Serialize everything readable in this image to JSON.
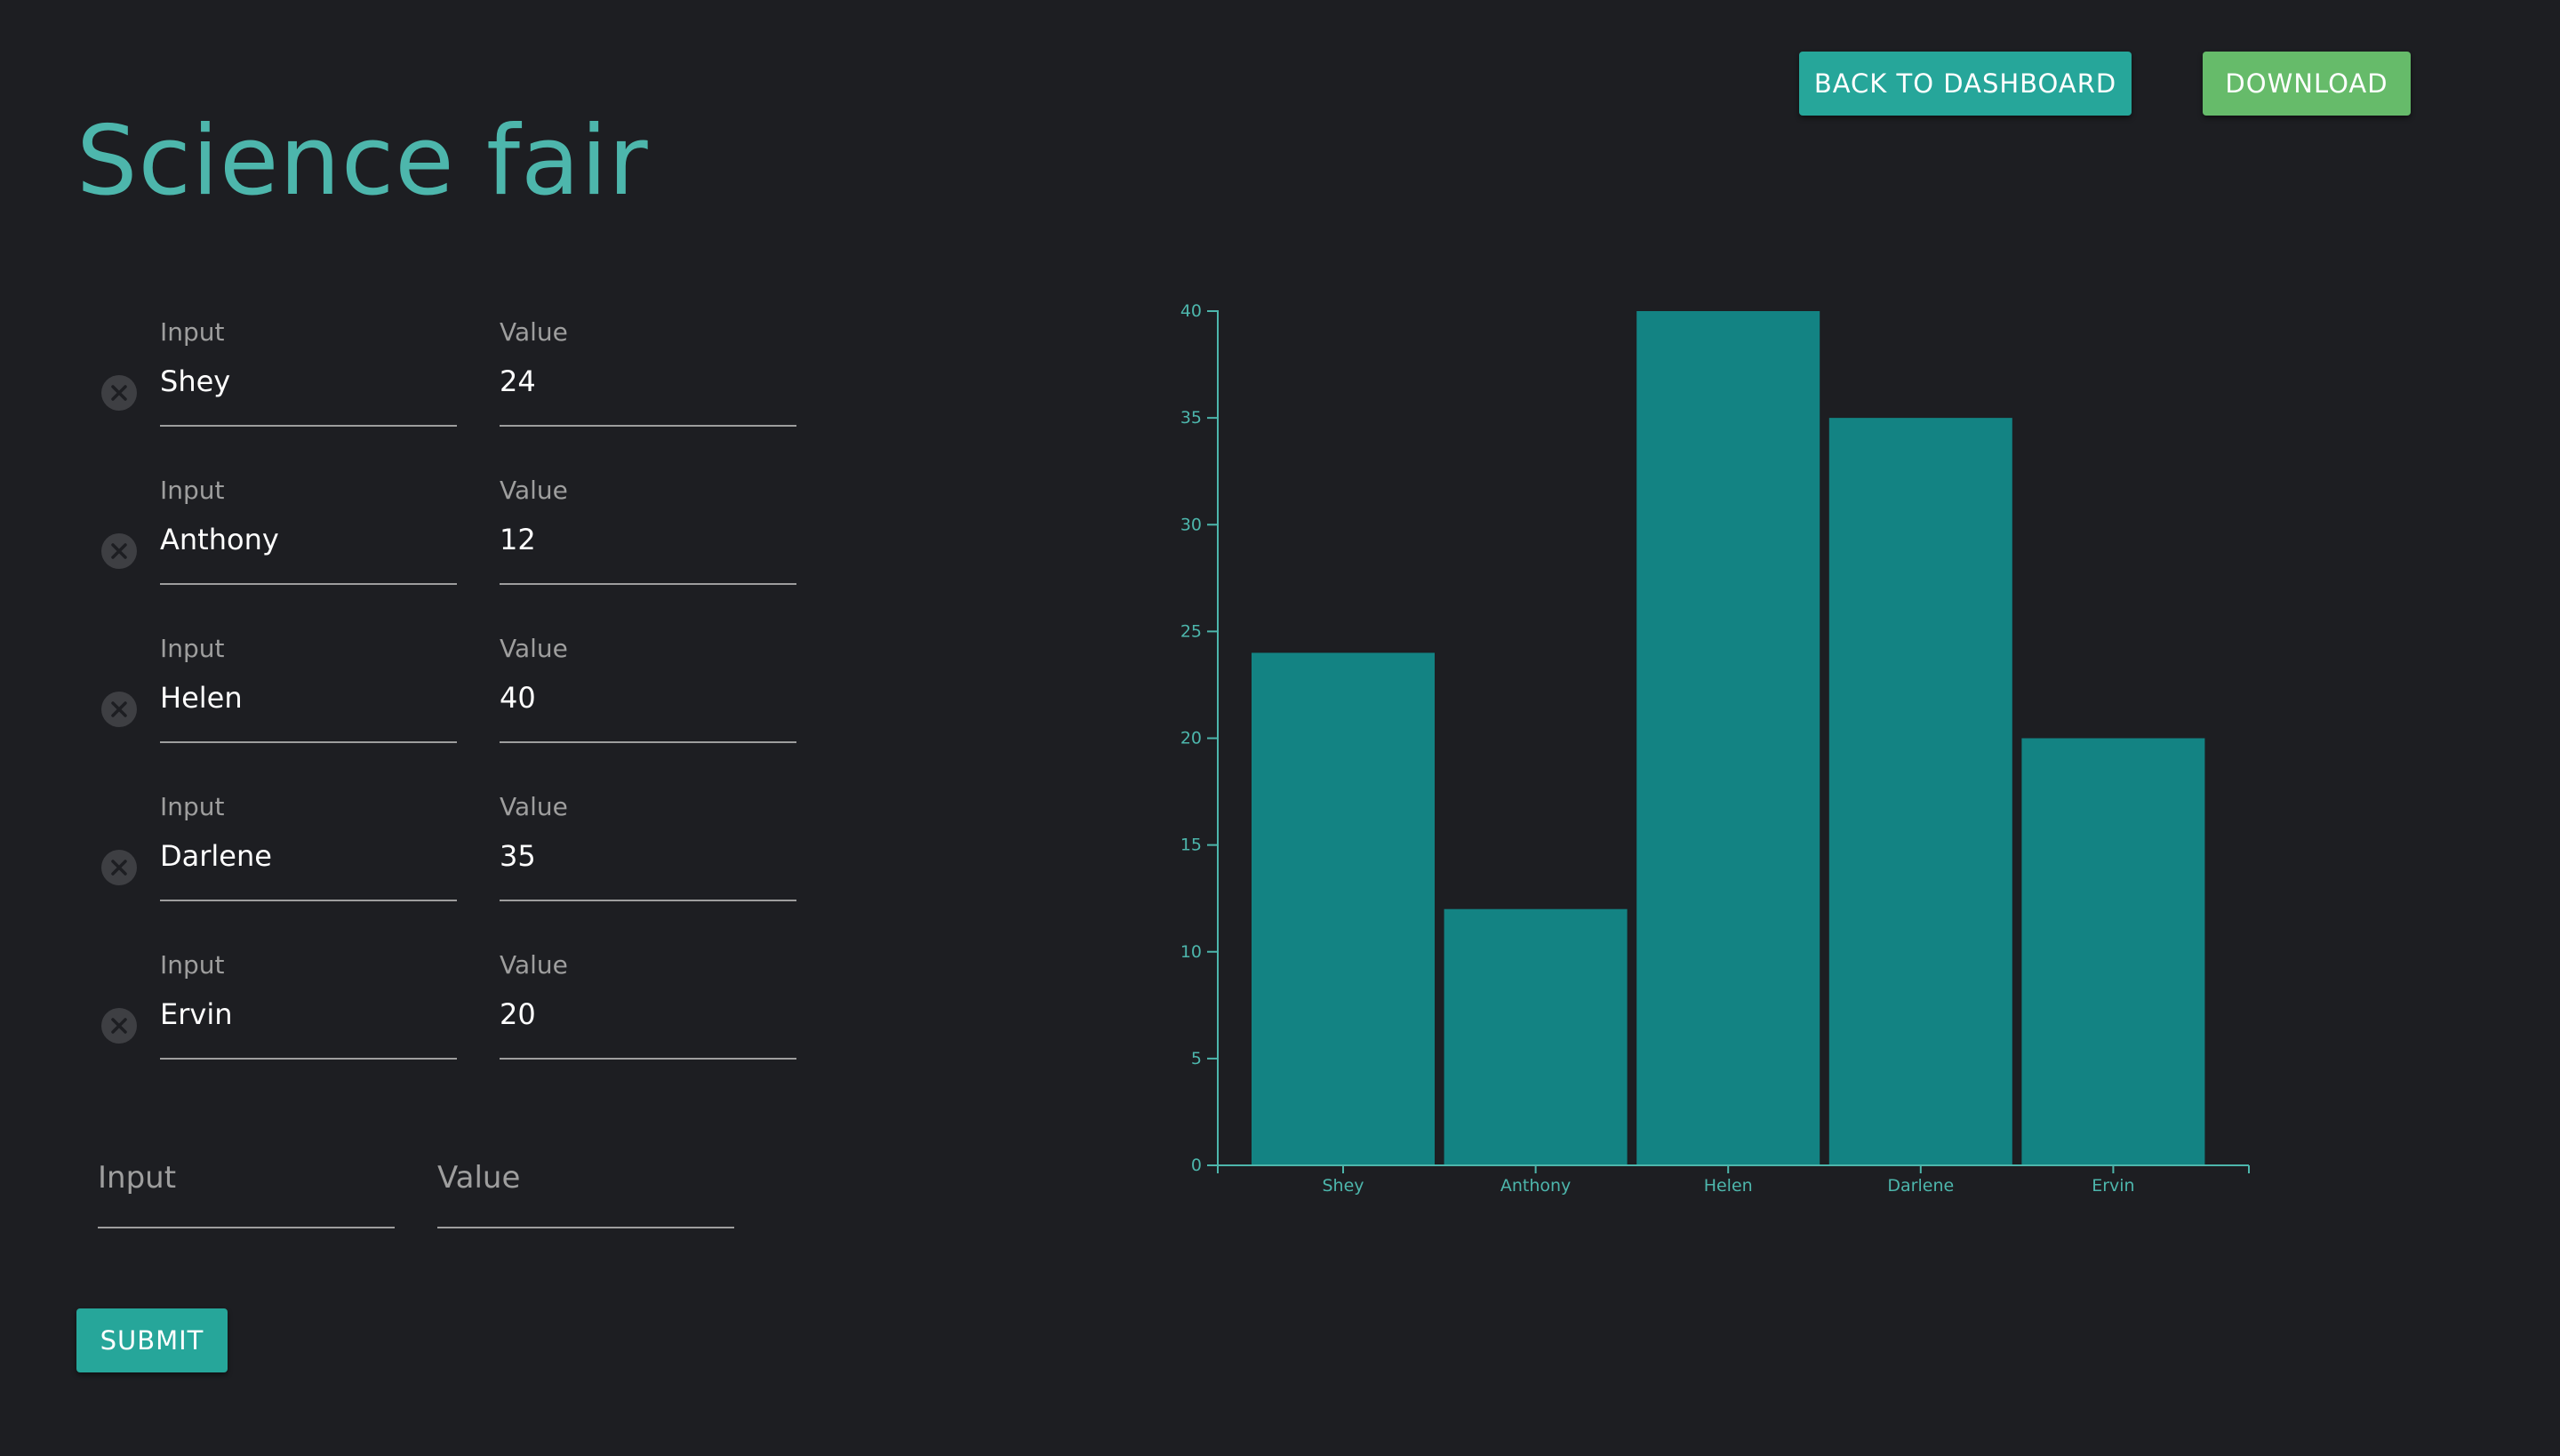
{
  "header": {
    "title": "Science fair",
    "back_label": "BACK TO DASHBOARD",
    "download_label": "DOWNLOAD"
  },
  "form": {
    "input_label": "Input",
    "value_label": "Value",
    "rows": [
      {
        "input": "Shey",
        "value": "24"
      },
      {
        "input": "Anthony",
        "value": "12"
      },
      {
        "input": "Helen",
        "value": "40"
      },
      {
        "input": "Darlene",
        "value": "35"
      },
      {
        "input": "Ervin",
        "value": "20"
      }
    ],
    "new_input_placeholder": "Input",
    "new_value_placeholder": "Value",
    "submit_label": "SUBMIT"
  },
  "colors": {
    "background": "#1d1e22",
    "accent": "#4db6ac",
    "bar": "#138383",
    "axis": "#4db6ac",
    "download": "#66bb6a"
  },
  "chart_data": {
    "type": "bar",
    "categories": [
      "Shey",
      "Anthony",
      "Helen",
      "Darlene",
      "Ervin"
    ],
    "values": [
      24,
      12,
      40,
      35,
      20
    ],
    "ylim": [
      0,
      40
    ],
    "yticks": [
      0,
      5,
      10,
      15,
      20,
      25,
      30,
      35,
      40
    ],
    "title": "",
    "xlabel": "",
    "ylabel": "",
    "grid": false
  }
}
